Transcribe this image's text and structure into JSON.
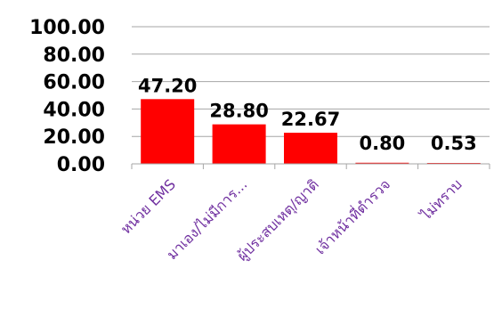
{
  "chart_data": {
    "type": "bar",
    "categories": [
      "หน่วย EMS",
      "มาเอง/ไม่มีการ...",
      "ผู้ประสบเหตุ/ญาติ",
      "เจ้าหน้าที่ตำรวจ",
      "ไม่ทราบ"
    ],
    "values": [
      47.2,
      28.8,
      22.67,
      0.8,
      0.53
    ],
    "data_labels": [
      "47.20",
      "28.80",
      "22.67",
      "0.80",
      "0.53"
    ],
    "y_ticks": [
      "0.00",
      "20.00",
      "40.00",
      "60.00",
      "80.00",
      "100.00"
    ],
    "ylim": [
      0,
      100
    ],
    "grid": true,
    "legend": "none",
    "title": "",
    "xlabel": "",
    "ylabel": ""
  },
  "colors": {
    "bar": "#ff0000",
    "gridline": "#a6a6a6",
    "category_label": "#7030a0",
    "text": "#000000"
  }
}
